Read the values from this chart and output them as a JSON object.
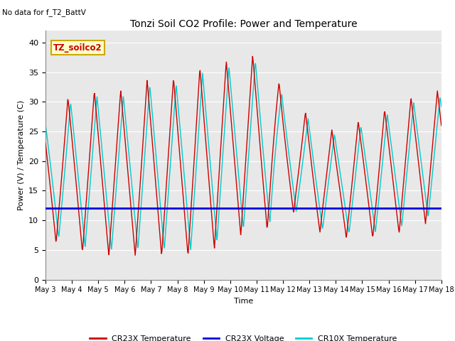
{
  "title": "Tonzi Soil CO2 Profile: Power and Temperature",
  "subtitle": "No data for f_T2_BattV",
  "ylabel": "Power (V) / Temperature (C)",
  "xlabel": "Time",
  "ylim": [
    0,
    42
  ],
  "yticks": [
    0,
    5,
    10,
    15,
    20,
    25,
    30,
    35,
    40
  ],
  "background_color": "#e8e8e8",
  "legend_items": [
    "CR23X Temperature",
    "CR23X Voltage",
    "CR10X Temperature"
  ],
  "legend_colors": [
    "#cc0000",
    "#0000dd",
    "#00cccc"
  ],
  "annotation_box_text": "TZ_soilco2",
  "annotation_box_color": "#ffffcc",
  "annotation_box_edge": "#ccaa00",
  "xtick_labels": [
    "May 3",
    "May 4",
    "May 5",
    "May 6",
    "May 7",
    "May 8",
    "May 9",
    "May 10",
    "May 11",
    "May 12",
    "May 13",
    "May 14",
    "May 15",
    "May 16",
    "May 17",
    "May 18"
  ],
  "voltage_value": 12.0,
  "cr10x_color": "#00cccc",
  "cr23x_color": "#cc0000",
  "voltage_color": "#0000dd",
  "grid_color": "#cccccc"
}
